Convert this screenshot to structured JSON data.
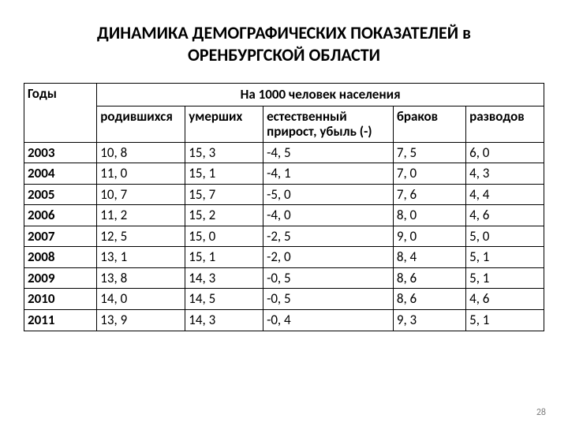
{
  "title_line1": "ДИНАМИКА ДЕМОГРАФИЧЕСКИХ ПОКАЗАТЕЛЕЙ в",
  "title_line2": "ОРЕНБУРГСКОЙ ОБЛАСТИ",
  "page_number": "28",
  "table": {
    "type": "table",
    "background_color": "#ffffff",
    "border_color": "#000000",
    "font_family": "Calibri",
    "header_fontsize_pt": 13,
    "cell_fontsize_pt": 13,
    "super_header": "На 1000 человек населения",
    "columns": [
      {
        "key": "year",
        "label": "Годы",
        "width_pct": 14,
        "align": "left"
      },
      {
        "key": "born",
        "label": "родившихся",
        "width_pct": 17,
        "align": "left"
      },
      {
        "key": "died",
        "label": "умерших",
        "width_pct": 15,
        "align": "left"
      },
      {
        "key": "natural",
        "label": "естественный прирост, убыль (-)",
        "width_pct": 25,
        "align": "left"
      },
      {
        "key": "marriages",
        "label": "браков",
        "width_pct": 14,
        "align": "left"
      },
      {
        "key": "divorces",
        "label": "разводов",
        "width_pct": 15,
        "align": "left"
      }
    ],
    "rows": [
      {
        "year": "2003",
        "born": "10, 8",
        "died": "15, 3",
        "natural": "-4, 5",
        "marriages": "7, 5",
        "divorces": "6, 0"
      },
      {
        "year": "2004",
        "born": "11, 0",
        "died": "15, 1",
        "natural": "-4, 1",
        "marriages": "7, 0",
        "divorces": "4, 3"
      },
      {
        "year": "2005",
        "born": "10, 7",
        "died": "15, 7",
        "natural": "-5, 0",
        "marriages": "7, 6",
        "divorces": "4, 4"
      },
      {
        "year": "2006",
        "born": "11, 2",
        "died": "15, 2",
        "natural": "-4, 0",
        "marriages": "8, 0",
        "divorces": "4, 6"
      },
      {
        "year": "2007",
        "born": "12, 5",
        "died": "15, 0",
        "natural": "-2, 5",
        "marriages": "9, 0",
        "divorces": "5, 0"
      },
      {
        "year": "2008",
        "born": "13, 1",
        "died": "15, 1",
        "natural": "-2, 0",
        "marriages": "8, 4",
        "divorces": "5, 1"
      },
      {
        "year": "2009",
        "born": "13, 8",
        "died": "14, 3",
        "natural": "-0, 5",
        "marriages": "8, 6",
        "divorces": "5, 1"
      },
      {
        "year": "2010",
        "born": "14, 0",
        "died": "14, 5",
        "natural": "-0, 5",
        "marriages": "8, 6",
        "divorces": "4, 6"
      },
      {
        "year": "2011",
        "born": "13, 9",
        "died": "14, 3",
        "natural": "-0, 4",
        "marriages": "9, 3",
        "divorces": "5, 1"
      }
    ]
  }
}
